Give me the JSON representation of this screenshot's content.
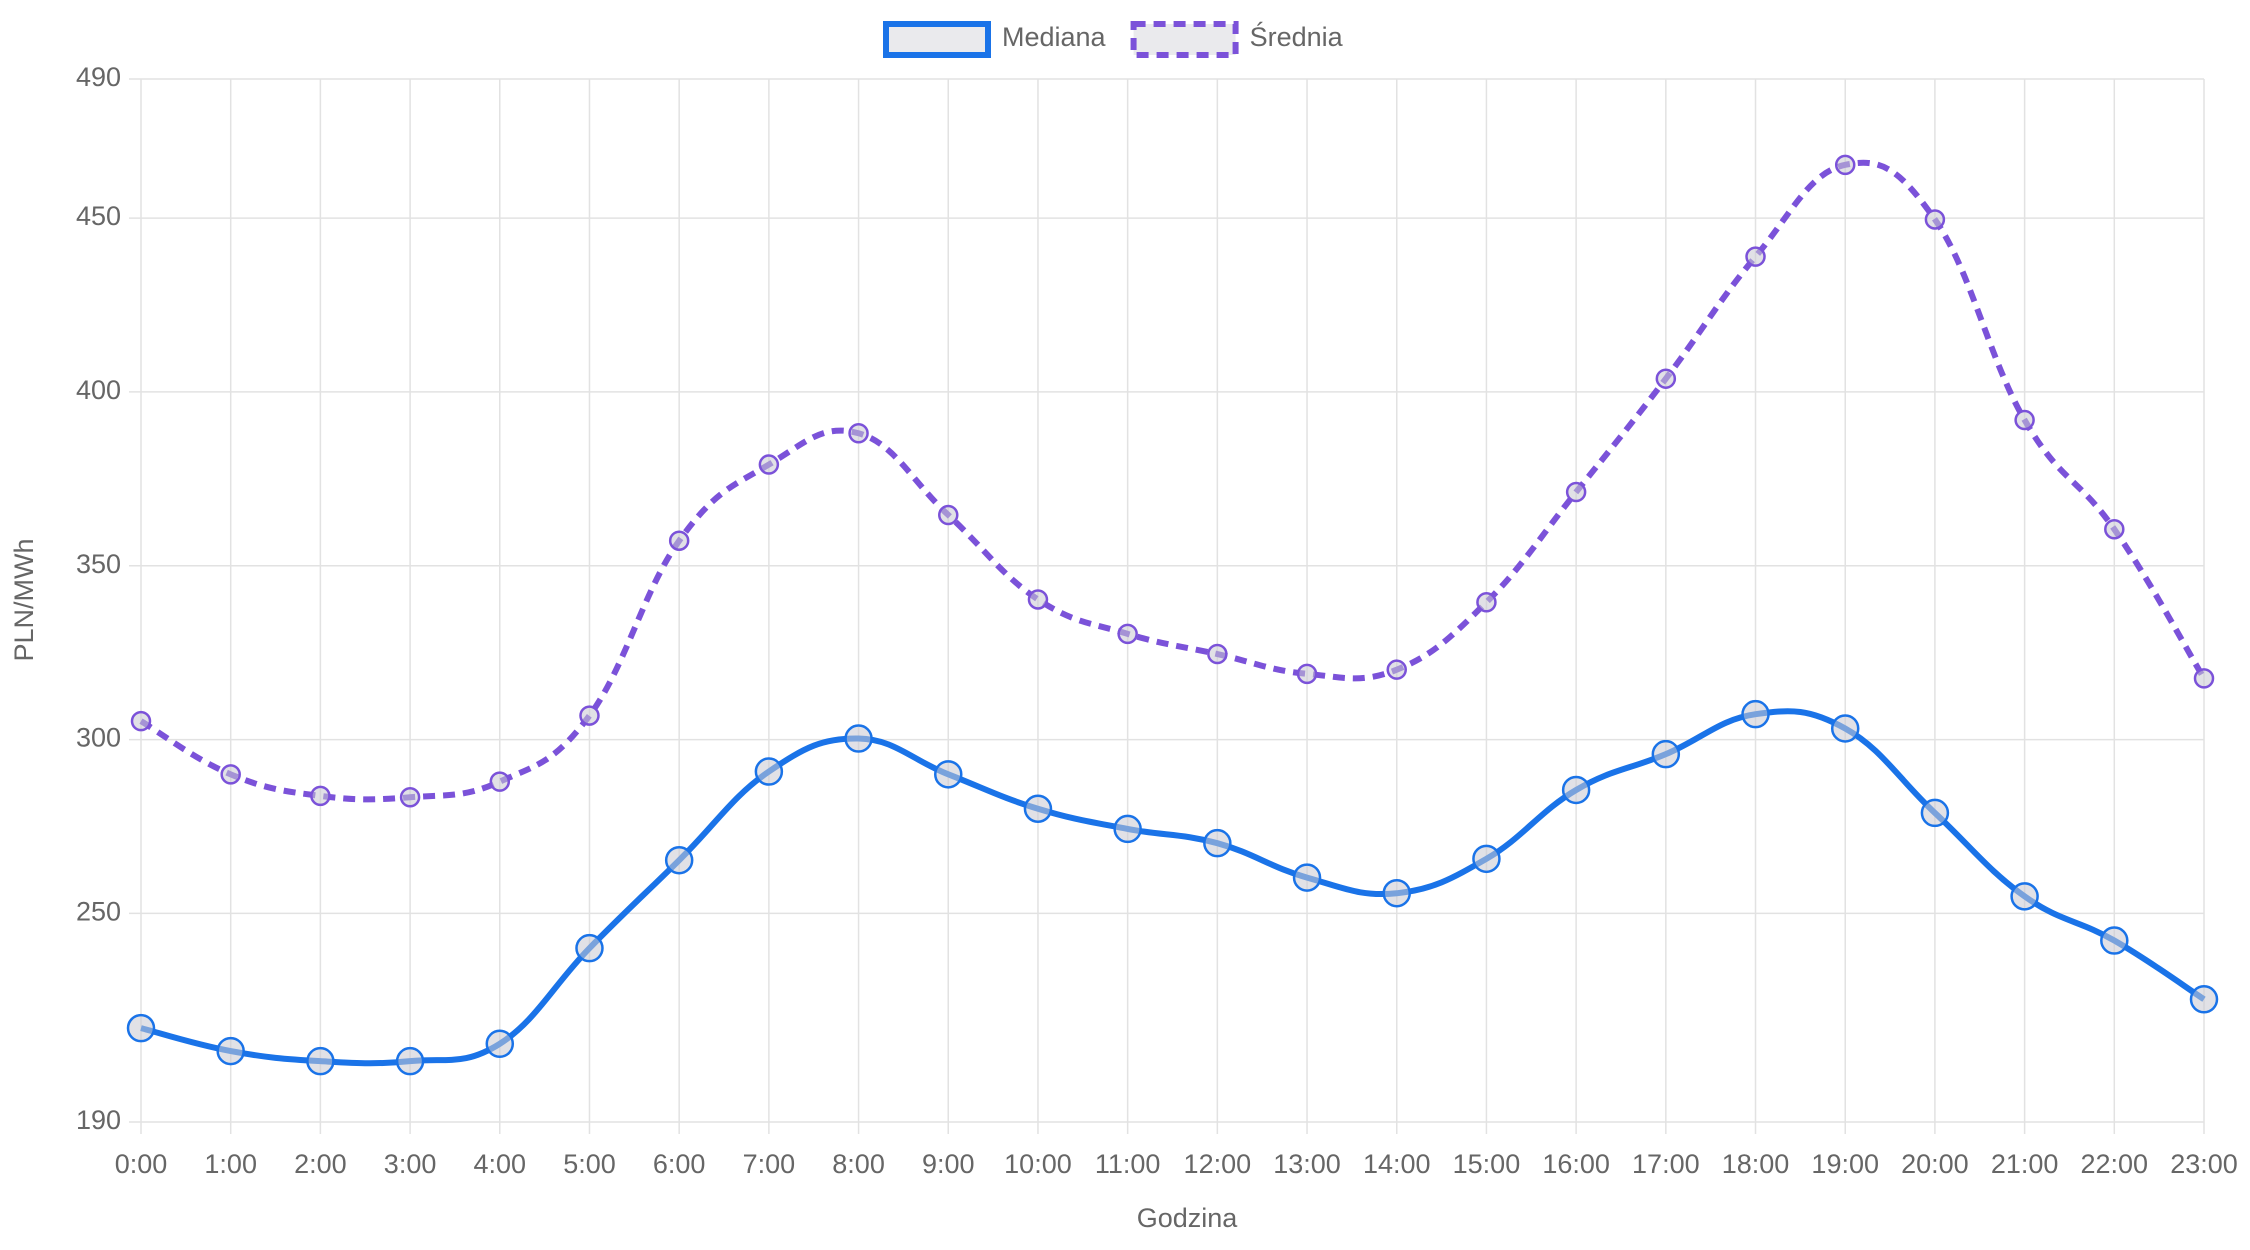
{
  "chart_data": {
    "type": "line",
    "x_label": "Godzina",
    "y_label": "PLN/MWh",
    "categories": [
      "0:00",
      "1:00",
      "2:00",
      "3:00",
      "4:00",
      "5:00",
      "6:00",
      "7:00",
      "8:00",
      "9:00",
      "10:00",
      "11:00",
      "12:00",
      "13:00",
      "14:00",
      "15:00",
      "16:00",
      "17:00",
      "18:00",
      "19:00",
      "20:00",
      "21:00",
      "22:00",
      "23:00"
    ],
    "series": [
      {
        "name": "Mediana",
        "color": "#1a73e8",
        "dashed": false,
        "values": [
          217,
          210.4,
          207.5,
          207.5,
          212.5,
          240,
          265.3,
          290.8,
          300.3,
          290,
          280.1,
          274.3,
          270.2,
          260.3,
          255.8,
          265.7,
          285.5,
          295.8,
          307.3,
          303.2,
          278.9,
          254.9,
          242.2,
          225.3
        ]
      },
      {
        "name": "Średnia",
        "color": "#7b52d9",
        "dashed": true,
        "values": [
          305.3,
          290,
          283.8,
          283.4,
          287.9,
          306.9,
          357.2,
          379.1,
          388.1,
          364.6,
          340.3,
          330.4,
          324.6,
          318.9,
          320.1,
          339.5,
          371.2,
          403.8,
          438.9,
          465.3,
          449.6,
          391.9,
          360.5,
          317.6
        ]
      }
    ],
    "ylim": [
      190,
      490
    ],
    "yticks": [
      190,
      250,
      300,
      350,
      400,
      450,
      490
    ],
    "grid": true,
    "legend": "top"
  }
}
